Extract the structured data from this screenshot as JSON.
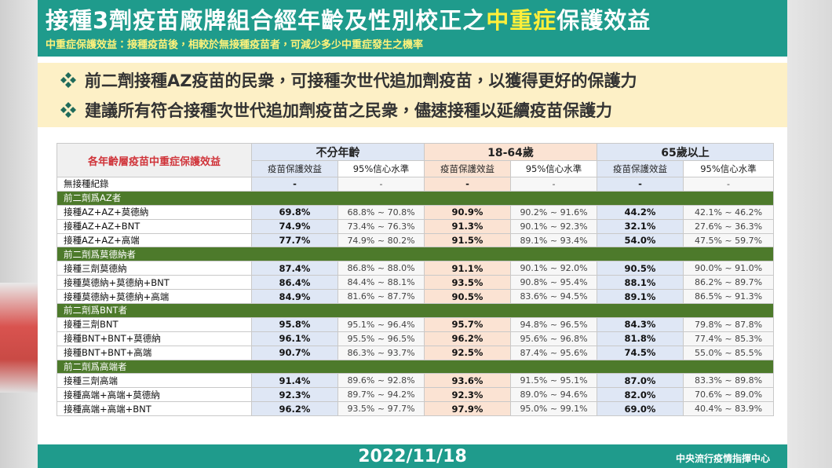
{
  "header": {
    "title": [
      "接種3劑疫苗廠牌組合經年齡及性別校正之",
      "中重症",
      "保護效益"
    ],
    "subtitle": "中重症保護效益：接種疫苗後，相較於無接種疫苗者，可減少多少中重症發生之機率"
  },
  "notes": [
    "前二劑接種AZ疫苗的民衆，可接種次世代追加劑疫苗，以獲得更好的保護力",
    "建議所有符合接種次世代追加劑疫苗之民衆，儘速接種以延續疫苗保護力"
  ],
  "table": {
    "corner": "各年齡層疫苗中重症保護效益",
    "groups": [
      "不分年齡",
      "18-64歲",
      "65歲以上"
    ],
    "subheaders": [
      "疫苗保護效益",
      "95%信心水準"
    ],
    "baseline": [
      "無接種紀錄",
      "-",
      "-",
      "-",
      "-",
      "-",
      "-"
    ],
    "sections": [
      {
        "title": "前二劑爲AZ者",
        "rows": [
          [
            "接種AZ+AZ+莫德納",
            "69.8%",
            "68.8% ~ 70.8%",
            "90.9%",
            "90.2% ~ 91.6%",
            "44.2%",
            "42.1% ~ 46.2%"
          ],
          [
            "接種AZ+AZ+BNT",
            "74.9%",
            "73.4% ~ 76.3%",
            "91.3%",
            "90.1% ~ 92.3%",
            "32.1%",
            "27.6% ~ 36.3%"
          ],
          [
            "接種AZ+AZ+高端",
            "77.7%",
            "74.9% ~ 80.2%",
            "91.5%",
            "89.1% ~ 93.4%",
            "54.0%",
            "47.5% ~ 59.7%"
          ]
        ]
      },
      {
        "title": "前二劑爲莫德納者",
        "rows": [
          [
            "接種三劑莫德納",
            "87.4%",
            "86.8% ~ 88.0%",
            "91.1%",
            "90.1% ~ 92.0%",
            "90.5%",
            "90.0% ~ 91.0%"
          ],
          [
            "接種莫德納+莫德納+BNT",
            "86.4%",
            "84.4% ~ 88.1%",
            "93.5%",
            "90.8% ~ 95.4%",
            "88.1%",
            "86.2% ~ 89.7%"
          ],
          [
            "接種莫德納+莫德納+高端",
            "84.9%",
            "81.6% ~ 87.7%",
            "90.5%",
            "83.6% ~ 94.5%",
            "89.1%",
            "86.5% ~ 91.3%"
          ]
        ]
      },
      {
        "title": "前二劑爲BNT者",
        "rows": [
          [
            "接種三劑BNT",
            "95.8%",
            "95.1% ~ 96.4%",
            "95.7%",
            "94.8% ~ 96.5%",
            "84.3%",
            "79.8% ~ 87.8%"
          ],
          [
            "接種BNT+BNT+莫德納",
            "96.1%",
            "95.5% ~ 96.5%",
            "96.2%",
            "95.6% ~ 96.8%",
            "81.8%",
            "77.4% ~ 85.3%"
          ],
          [
            "接種BNT+BNT+高端",
            "90.7%",
            "86.3% ~ 93.7%",
            "92.5%",
            "87.4% ~ 95.6%",
            "74.5%",
            "55.0% ~ 85.5%"
          ]
        ]
      },
      {
        "title": "前二劑爲高端者",
        "rows": [
          [
            "接種三劑高端",
            "91.4%",
            "89.6% ~ 92.8%",
            "93.6%",
            "91.5% ~ 95.1%",
            "87.0%",
            "83.3% ~ 89.8%"
          ],
          [
            "接種高端+高端+莫德納",
            "92.3%",
            "89.7% ~ 94.2%",
            "92.3%",
            "89.0% ~ 94.6%",
            "82.0%",
            "70.6% ~ 89.0%"
          ],
          [
            "接種高端+高端+BNT",
            "96.2%",
            "93.5% ~ 97.7%",
            "97.9%",
            "95.0% ~ 99.1%",
            "69.0%",
            "40.4% ~ 83.9%"
          ]
        ]
      }
    ]
  },
  "footer": {
    "date": "2022/11/18",
    "org": "中央流行疫情指揮中心"
  }
}
